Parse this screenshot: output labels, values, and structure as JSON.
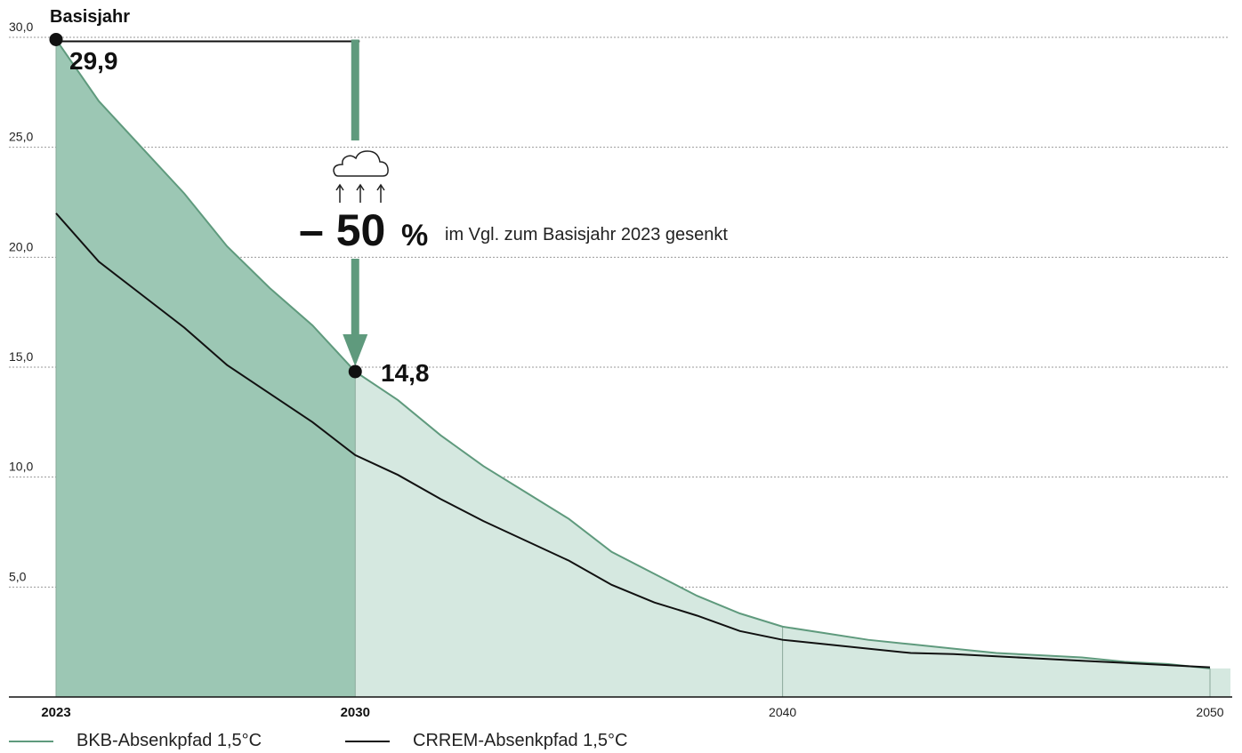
{
  "chart_data": {
    "type": "area",
    "title": "",
    "xlabel": "",
    "ylabel": "",
    "ylim": [
      0,
      30
    ],
    "xlim": [
      2023,
      2050
    ],
    "yticks": [
      "30,0",
      "25,0",
      "20,0",
      "15,0",
      "10,0",
      "5,0"
    ],
    "ytick_values": [
      30,
      25,
      20,
      15,
      10,
      5
    ],
    "xticks": [
      {
        "value": 2023,
        "label": "2023",
        "bold": true
      },
      {
        "value": 2030,
        "label": "2030",
        "bold": true
      },
      {
        "value": 2040,
        "label": "2040",
        "bold": false
      },
      {
        "value": 2050,
        "label": "2050",
        "bold": false
      }
    ],
    "grid": "horizontal dotted",
    "legend_position": "bottom",
    "series": [
      {
        "name": "BKB-Absenkpfad 1,5°C",
        "color": "#5f9a7d",
        "fill_dark": "#9cc7b4",
        "fill_light": "#d5e8e0",
        "x": [
          2023,
          2024,
          2025,
          2026,
          2027,
          2028,
          2029,
          2030,
          2031,
          2032,
          2033,
          2034,
          2035,
          2036,
          2037,
          2038,
          2039,
          2040,
          2041,
          2042,
          2043,
          2044,
          2045,
          2046,
          2047,
          2048,
          2049,
          2050
        ],
        "values": [
          29.9,
          27.1,
          25.0,
          22.9,
          20.5,
          18.6,
          16.9,
          14.8,
          13.5,
          11.9,
          10.5,
          9.3,
          8.1,
          6.6,
          5.6,
          4.6,
          3.8,
          3.2,
          2.9,
          2.6,
          2.4,
          2.2,
          2.0,
          1.9,
          1.8,
          1.6,
          1.5,
          1.3
        ]
      },
      {
        "name": "CRREM-Absenkpfad 1,5°C",
        "color": "#111111",
        "x": [
          2023,
          2024,
          2025,
          2026,
          2027,
          2028,
          2029,
          2030,
          2031,
          2032,
          2033,
          2034,
          2035,
          2036,
          2037,
          2038,
          2039,
          2040,
          2041,
          2042,
          2043,
          2044,
          2045,
          2046,
          2047,
          2048,
          2049,
          2050
        ],
        "values": [
          22.0,
          19.8,
          18.3,
          16.8,
          15.1,
          13.8,
          12.5,
          11.0,
          10.1,
          9.0,
          8.0,
          7.1,
          6.2,
          5.1,
          4.3,
          3.7,
          3.0,
          2.6,
          2.4,
          2.2,
          2.0,
          1.95,
          1.85,
          1.75,
          1.65,
          1.55,
          1.45,
          1.35
        ]
      }
    ],
    "annotations": {
      "base_label": "Basisjahr",
      "start_value_label": "29,9",
      "end_value_label": "14,8",
      "reduction_number": "– 50",
      "reduction_unit": "%",
      "reduction_text": "im Vgl. zum Basisjahr 2023 gesenkt",
      "arrow_color": "#5f9a7d",
      "icon": "cloud-with-arrows-icon"
    }
  }
}
